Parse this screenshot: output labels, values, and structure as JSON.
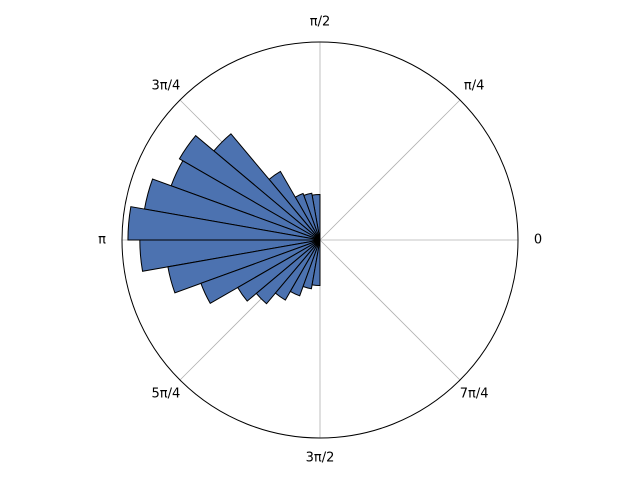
{
  "chart_data": {
    "type": "polar-bar",
    "x": [
      1.6581,
      1.8326,
      2.0071,
      2.1817,
      2.3562,
      2.5307,
      2.7053,
      2.8798,
      3.0543,
      3.2289,
      3.4034,
      3.5779,
      3.7525,
      3.927,
      4.1015,
      4.2761,
      4.4506,
      4.6251
    ],
    "width": 0.1745,
    "values": [
      0.23,
      0.24,
      0.25,
      0.4,
      0.7,
      0.82,
      0.8,
      0.9,
      0.97,
      0.91,
      0.78,
      0.64,
      0.48,
      0.42,
      0.35,
      0.3,
      0.25,
      0.23
    ],
    "color": "#4c72b0",
    "edgecolor": "#000000",
    "rlim": [
      0,
      1
    ],
    "xticks": [
      0,
      {
        "value": 0.7854,
        "label": "π/4"
      },
      {
        "value": 1.5708,
        "label": "π/2"
      },
      {
        "value": 2.3562,
        "label": "3π/4"
      },
      {
        "value": 3.1416,
        "label": "π"
      },
      {
        "value": 3.927,
        "label": "5π/4"
      },
      {
        "value": 4.7124,
        "label": "3π/2"
      },
      {
        "value": 5.4978,
        "label": "7π/4"
      }
    ],
    "grid": true
  }
}
